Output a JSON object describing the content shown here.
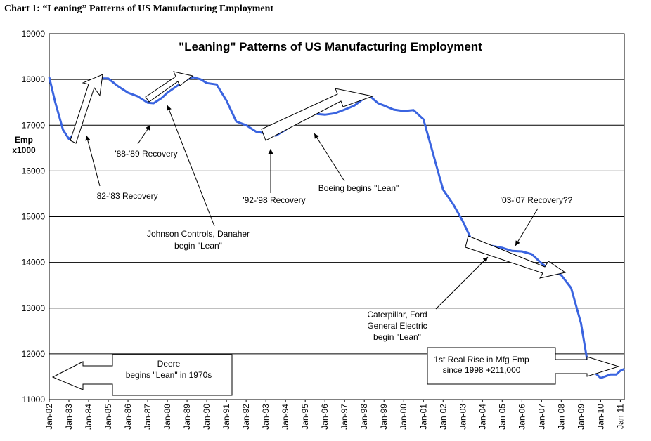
{
  "header": "Chart 1: “Leaning” Patterns of US Manufacturing Employment",
  "chart_data": {
    "type": "line",
    "title": "\"Leaning\" Patterns of US Manufacturing Employment",
    "ylabel": [
      "Emp",
      "x1000"
    ],
    "xlim": [
      1982,
      2011.2
    ],
    "xticks": [
      {
        "value": 1982,
        "label": "Jan-82"
      },
      {
        "value": 1983,
        "label": "Jan-83"
      },
      {
        "value": 1984,
        "label": "Jan-84"
      },
      {
        "value": 1985,
        "label": "Jan-85"
      },
      {
        "value": 1986,
        "label": "Jan-86"
      },
      {
        "value": 1987,
        "label": "Jan-87"
      },
      {
        "value": 1988,
        "label": "Jan-88"
      },
      {
        "value": 1989,
        "label": "Jan-89"
      },
      {
        "value": 1990,
        "label": "Jan-90"
      },
      {
        "value": 1991,
        "label": "Jan-91"
      },
      {
        "value": 1992,
        "label": "Jan-92"
      },
      {
        "value": 1993,
        "label": "Jan-93"
      },
      {
        "value": 1994,
        "label": "Jan-94"
      },
      {
        "value": 1995,
        "label": "Jan-95"
      },
      {
        "value": 1996,
        "label": "Jan-96"
      },
      {
        "value": 1997,
        "label": "Jan-97"
      },
      {
        "value": 1998,
        "label": "Jan-98"
      },
      {
        "value": 1999,
        "label": "Jan-99"
      },
      {
        "value": 2000,
        "label": "Jan-00"
      },
      {
        "value": 2001,
        "label": "Jan-01"
      },
      {
        "value": 2002,
        "label": "Jan-02"
      },
      {
        "value": 2003,
        "label": "Jan-03"
      },
      {
        "value": 2004,
        "label": "Jan-04"
      },
      {
        "value": 2005,
        "label": "Jan-05"
      },
      {
        "value": 2006,
        "label": "Jan-06"
      },
      {
        "value": 2007,
        "label": "Jan-07"
      },
      {
        "value": 2008,
        "label": "Jan-08"
      },
      {
        "value": 2009,
        "label": "Jan-09"
      },
      {
        "value": 2010,
        "label": "Jan-10"
      },
      {
        "value": 2011,
        "label": "Jan-11"
      }
    ],
    "ylim": [
      11000,
      19000
    ],
    "yticks": [
      11000,
      12000,
      13000,
      14000,
      15000,
      16000,
      17000,
      18000,
      19000
    ],
    "grid": true,
    "series": [
      {
        "name": "Manufacturing Employment",
        "color": "#3a64e0",
        "x": [
          1982.0,
          1982.3,
          1982.7,
          1983.0,
          1983.3,
          1983.7,
          1984.0,
          1984.3,
          1984.7,
          1985.0,
          1985.5,
          1986.0,
          1986.5,
          1987.0,
          1987.3,
          1987.7,
          1988.0,
          1988.5,
          1989.0,
          1989.3,
          1989.7,
          1990.0,
          1990.5,
          1991.0,
          1991.5,
          1992.0,
          1992.5,
          1993.0,
          1993.5,
          1994.0,
          1994.5,
          1995.0,
          1995.5,
          1996.0,
          1996.5,
          1997.0,
          1997.5,
          1998.0,
          1998.3,
          1998.7,
          1999.0,
          1999.5,
          2000.0,
          2000.5,
          2001.0,
          2001.3,
          2001.7,
          2002.0,
          2002.5,
          2003.0,
          2003.5,
          2004.0,
          2004.5,
          2005.0,
          2005.5,
          2006.0,
          2006.5,
          2007.0,
          2007.5,
          2008.0,
          2008.5,
          2009.0,
          2009.3,
          2009.7,
          2010.0,
          2010.5,
          2010.8,
          2011.0,
          2011.2
        ],
        "values": [
          18050,
          17510,
          16900,
          16700,
          16820,
          17280,
          17660,
          17920,
          18020,
          18020,
          17850,
          17710,
          17630,
          17490,
          17480,
          17590,
          17710,
          17860,
          18000,
          18050,
          18000,
          17920,
          17890,
          17540,
          17080,
          17000,
          16860,
          16820,
          16770,
          16900,
          17100,
          17280,
          17250,
          17230,
          17260,
          17340,
          17430,
          17590,
          17630,
          17480,
          17430,
          17340,
          17310,
          17330,
          17130,
          16670,
          16050,
          15590,
          15280,
          14900,
          14440,
          14330,
          14360,
          14320,
          14250,
          14240,
          14180,
          13980,
          13820,
          13720,
          13440,
          12670,
          11900,
          11590,
          11470,
          11550,
          11550,
          11630,
          11670
        ]
      }
    ],
    "annotations": [
      [
        "'82-'83 Recovery"
      ],
      [
        "'88-'89 Recovery"
      ],
      [
        "Johnson Controls, Danaher",
        "begin \"Lean\""
      ],
      [
        "'92-'98 Recovery"
      ],
      [
        "Boeing begins \"Lean\""
      ],
      [
        "'03-'07 Recovery??"
      ],
      [
        "Caterpillar, Ford",
        "General Electric",
        "begin \"Lean\""
      ],
      [
        "Deere",
        "begins \"Lean\" in 1970s"
      ],
      [
        "1st Real Rise in Mfg Emp",
        "since 1998 +211,000"
      ]
    ]
  }
}
